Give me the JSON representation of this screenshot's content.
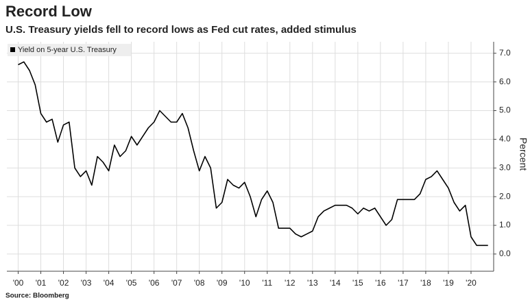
{
  "chart_data": {
    "type": "line",
    "title": "Record Low",
    "subtitle": "U.S. Treasury yields fell to record lows as Fed cut rates, added stimulus",
    "y_label": "Percent",
    "source": "Source: Bloomberg",
    "x": [
      2000,
      2000.25,
      2000.5,
      2000.75,
      2001,
      2001.25,
      2001.5,
      2001.75,
      2002,
      2002.25,
      2002.5,
      2002.75,
      2003,
      2003.25,
      2003.5,
      2003.75,
      2004,
      2004.25,
      2004.5,
      2004.75,
      2005,
      2005.25,
      2005.5,
      2005.75,
      2006,
      2006.25,
      2006.5,
      2006.75,
      2007,
      2007.25,
      2007.5,
      2007.75,
      2008,
      2008.25,
      2008.5,
      2008.75,
      2009,
      2009.25,
      2009.5,
      2009.75,
      2010,
      2010.25,
      2010.5,
      2010.75,
      2011,
      2011.25,
      2011.5,
      2011.75,
      2012,
      2012.25,
      2012.5,
      2012.75,
      2013,
      2013.25,
      2013.5,
      2013.75,
      2014,
      2014.25,
      2014.5,
      2014.75,
      2015,
      2015.25,
      2015.5,
      2015.75,
      2016,
      2016.25,
      2016.5,
      2016.75,
      2017,
      2017.25,
      2017.5,
      2017.75,
      2018,
      2018.25,
      2018.5,
      2018.75,
      2019,
      2019.25,
      2019.5,
      2019.75,
      2020,
      2020.25,
      2020.5,
      2020.75
    ],
    "series": [
      {
        "name": "Yield on 5-year U.S. Treasury",
        "color": "#000000",
        "values": [
          6.6,
          6.7,
          6.4,
          5.9,
          4.9,
          4.6,
          4.7,
          3.9,
          4.5,
          4.6,
          3.0,
          2.7,
          2.9,
          2.4,
          3.4,
          3.2,
          2.9,
          3.8,
          3.4,
          3.6,
          4.1,
          3.8,
          4.1,
          4.4,
          4.6,
          5.0,
          4.8,
          4.6,
          4.6,
          4.9,
          4.4,
          3.6,
          2.9,
          3.4,
          3.0,
          1.6,
          1.8,
          2.6,
          2.4,
          2.3,
          2.5,
          2.0,
          1.3,
          1.9,
          2.2,
          1.8,
          0.9,
          0.9,
          0.9,
          0.7,
          0.6,
          0.7,
          0.8,
          1.3,
          1.5,
          1.6,
          1.7,
          1.7,
          1.7,
          1.6,
          1.4,
          1.6,
          1.5,
          1.6,
          1.3,
          1.0,
          1.2,
          1.9,
          1.9,
          1.9,
          1.9,
          2.1,
          2.6,
          2.7,
          2.9,
          2.6,
          2.3,
          1.8,
          1.5,
          1.7,
          0.6,
          0.3,
          0.3,
          0.3
        ]
      }
    ],
    "xlim": [
      1999.5,
      2021
    ],
    "xticks": [
      {
        "value": 2000,
        "label": "'00"
      },
      {
        "value": 2001,
        "label": "'01"
      },
      {
        "value": 2002,
        "label": "'02"
      },
      {
        "value": 2003,
        "label": "'03"
      },
      {
        "value": 2004,
        "label": "'04"
      },
      {
        "value": 2005,
        "label": "'05"
      },
      {
        "value": 2006,
        "label": "'06"
      },
      {
        "value": 2007,
        "label": "'07"
      },
      {
        "value": 2008,
        "label": "'08"
      },
      {
        "value": 2009,
        "label": "'09"
      },
      {
        "value": 2010,
        "label": "'10"
      },
      {
        "value": 2011,
        "label": "'11"
      },
      {
        "value": 2012,
        "label": "'12"
      },
      {
        "value": 2013,
        "label": "'13"
      },
      {
        "value": 2014,
        "label": "'14"
      },
      {
        "value": 2015,
        "label": "'15"
      },
      {
        "value": 2016,
        "label": "'16"
      },
      {
        "value": 2017,
        "label": "'17"
      },
      {
        "value": 2018,
        "label": "'18"
      },
      {
        "value": 2019,
        "label": "'19"
      },
      {
        "value": 2020,
        "label": "'20"
      }
    ],
    "ylim": [
      -0.6,
      7.4
    ],
    "yticks": [
      {
        "value": 0,
        "label": "0.0"
      },
      {
        "value": 1,
        "label": "1.0"
      },
      {
        "value": 2,
        "label": "2.0"
      },
      {
        "value": 3,
        "label": "3.0"
      },
      {
        "value": 4,
        "label": "4.0"
      },
      {
        "value": 5,
        "label": "5.0"
      },
      {
        "value": 6,
        "label": "6.0"
      },
      {
        "value": 7,
        "label": "7.0"
      }
    ],
    "grid": true
  }
}
